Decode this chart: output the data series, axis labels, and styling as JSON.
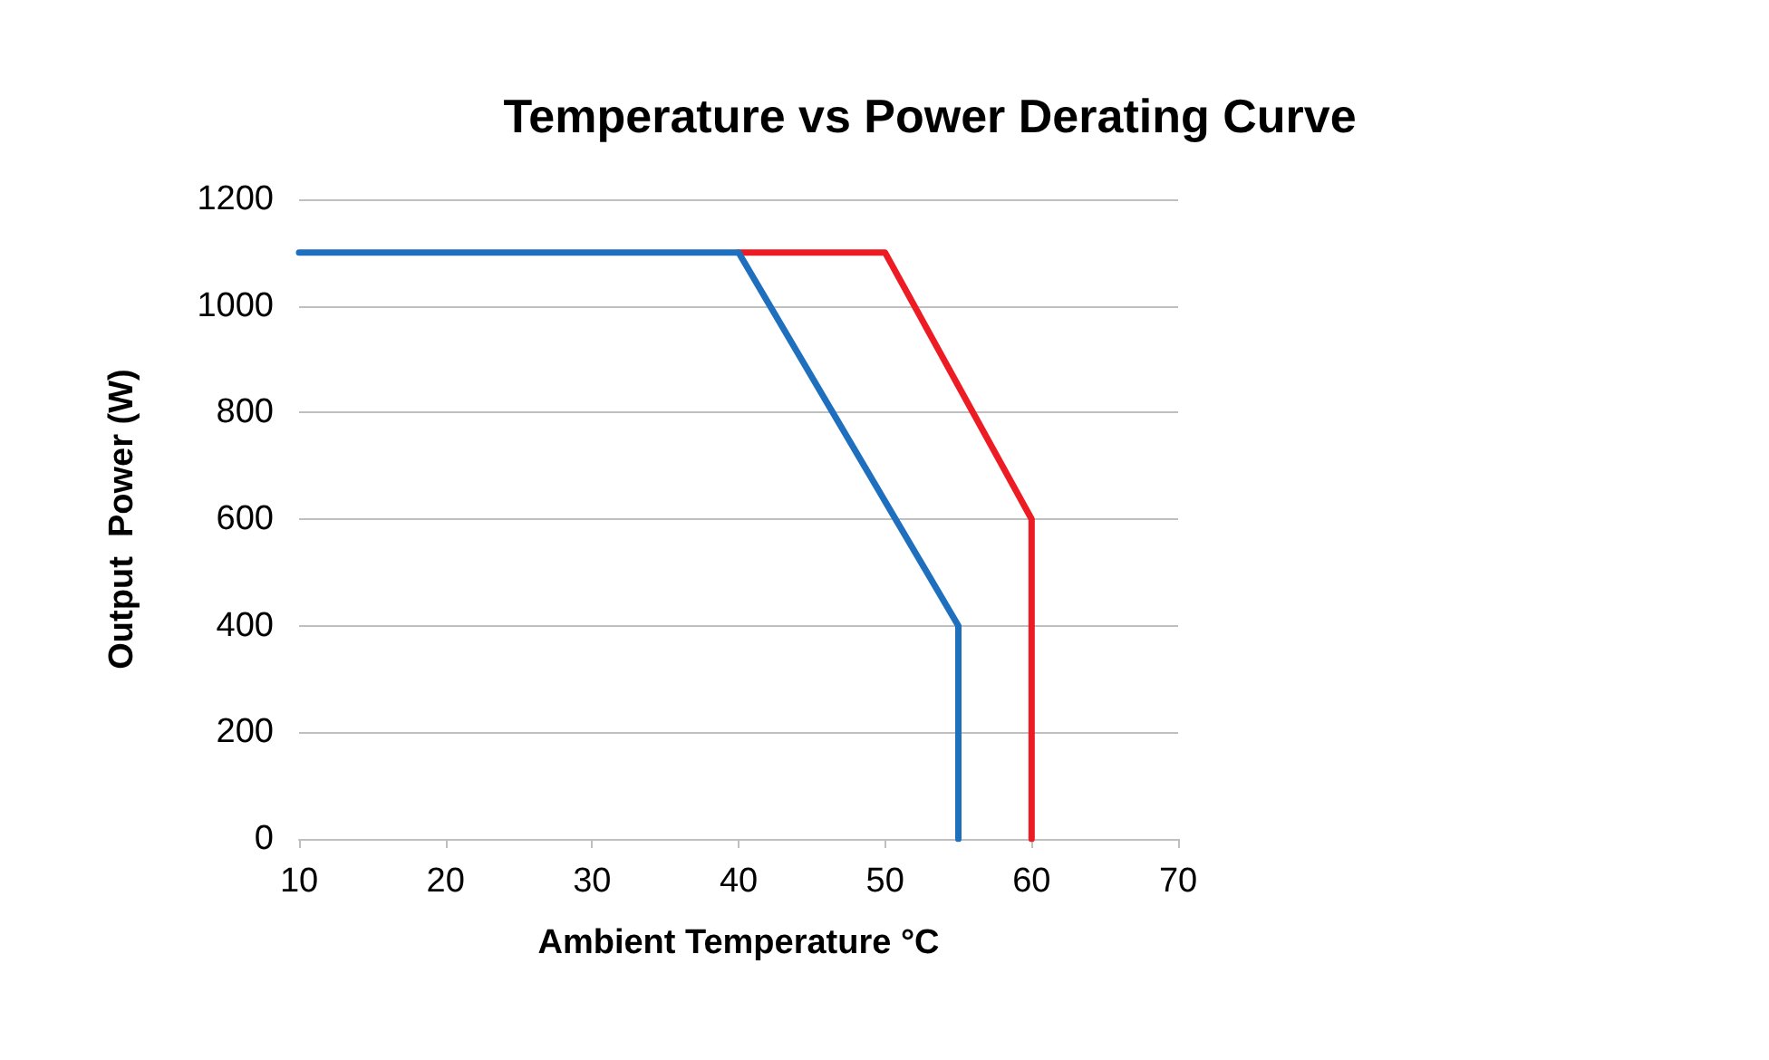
{
  "chart_data": {
    "type": "line",
    "title": "Temperature vs Power Derating Curve",
    "xlabel": "Ambient Temperature °C",
    "ylabel": "Output  Power (W)",
    "xlim": [
      10,
      70
    ],
    "xticks": [
      10,
      20,
      30,
      40,
      50,
      60,
      70
    ],
    "ylim": [
      0,
      1200
    ],
    "yticks": [
      0,
      200,
      400,
      600,
      800,
      1000,
      1200
    ],
    "grid": "y",
    "marker": "none",
    "line_style": "solid",
    "series": [
      {
        "color": "#ed1c24",
        "x": [
          40,
          50,
          60,
          60
        ],
        "values": [
          1100,
          1100,
          600,
          0
        ]
      },
      {
        "color": "#1f6fbf",
        "x": [
          10,
          40,
          55,
          55
        ],
        "values": [
          1100,
          1100,
          400,
          0
        ]
      }
    ]
  }
}
